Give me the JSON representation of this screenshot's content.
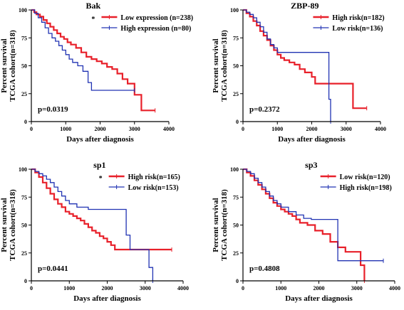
{
  "chart_data": [
    {
      "type": "line",
      "title": "Bak",
      "xlabel": "Days after diagnosis",
      "ylabel": [
        "Percent survival",
        "TCGA cohort(n=318)"
      ],
      "xlim": [
        0,
        4000
      ],
      "ylim": [
        0,
        100
      ],
      "xticks": [
        "0",
        "1000",
        "2000",
        "3000",
        "4000"
      ],
      "yticks": [
        "0",
        "25",
        "50",
        "75",
        "100"
      ],
      "legend_position": "top-right",
      "significance_marker": "*",
      "pvalue": "p=0.0319",
      "series": [
        {
          "name": "Low expression (n=238)",
          "color": "#e8202a",
          "x": [
            0,
            80,
            150,
            250,
            350,
            450,
            550,
            650,
            750,
            850,
            950,
            1050,
            1150,
            1300,
            1450,
            1600,
            1750,
            1900,
            2050,
            2200,
            2350,
            2500,
            2650,
            2800,
            3000,
            3200,
            3600
          ],
          "y": [
            100,
            98,
            96,
            94,
            91,
            88,
            85,
            82,
            79,
            76,
            74,
            71,
            69,
            66,
            62,
            58,
            56,
            54,
            52,
            49,
            47,
            43,
            38,
            34,
            24,
            10,
            10
          ]
        },
        {
          "name": "High expression (n=80)",
          "color": "#2133b3",
          "x": [
            0,
            100,
            200,
            300,
            400,
            500,
            600,
            700,
            800,
            900,
            1000,
            1100,
            1200,
            1350,
            1500,
            1650,
            1750,
            2000,
            2600,
            3000
          ],
          "y": [
            100,
            97,
            93,
            89,
            84,
            79,
            75,
            72,
            68,
            64,
            60,
            56,
            53,
            50,
            45,
            35,
            28,
            28,
            28,
            28
          ]
        }
      ]
    },
    {
      "type": "line",
      "title": "ZBP-89",
      "xlabel": "Days after diagnosis",
      "ylabel": [
        "Percent survival",
        "TCGA cohort(n=318)"
      ],
      "xlim": [
        0,
        4000
      ],
      "ylim": [
        0,
        100
      ],
      "xticks": [
        "0",
        "1000",
        "2000",
        "3000",
        "4000"
      ],
      "yticks": [
        "0",
        "25",
        "50",
        "75",
        "100"
      ],
      "legend_position": "top-right",
      "significance_marker": "",
      "pvalue": "p=0.2372",
      "series": [
        {
          "name": "High risk(n=182)",
          "color": "#e8202a",
          "x": [
            0,
            100,
            200,
            300,
            400,
            500,
            600,
            700,
            800,
            900,
            1000,
            1100,
            1200,
            1350,
            1500,
            1650,
            1800,
            2000,
            2100,
            3200,
            3400,
            3600
          ],
          "y": [
            100,
            97,
            94,
            90,
            86,
            81,
            77,
            73,
            68,
            64,
            60,
            57,
            55,
            53,
            51,
            47,
            44,
            40,
            34,
            12,
            12,
            12
          ]
        },
        {
          "name": "Low risk(n=136)",
          "color": "#2133b3",
          "x": [
            0,
            100,
            200,
            300,
            400,
            500,
            600,
            700,
            800,
            900,
            1000,
            1100,
            1200,
            1500,
            2000,
            2500,
            2550
          ],
          "y": [
            100,
            98,
            96,
            93,
            89,
            85,
            80,
            74,
            69,
            66,
            62,
            62,
            62,
            62,
            62,
            20,
            0
          ]
        }
      ]
    },
    {
      "type": "line",
      "title": "sp1",
      "xlabel": "Days after diagnosis",
      "ylabel": [
        "Percent survival",
        "TCGA cohort(n=318)"
      ],
      "xlim": [
        0,
        4000
      ],
      "ylim": [
        0,
        100
      ],
      "xticks": [
        "0",
        "1000",
        "2000",
        "3000",
        "4000"
      ],
      "yticks": [
        "0",
        "25",
        "50",
        "75",
        "100"
      ],
      "legend_position": "top-right",
      "significance_marker": "*",
      "pvalue": "p=0.0441",
      "series": [
        {
          "name": "High risk(n=165)",
          "color": "#e8202a",
          "x": [
            0,
            100,
            200,
            300,
            400,
            500,
            600,
            700,
            800,
            900,
            1000,
            1100,
            1200,
            1300,
            1400,
            1500,
            1600,
            1700,
            1800,
            1900,
            2000,
            2100,
            2200,
            3700
          ],
          "y": [
            100,
            97,
            93,
            88,
            83,
            78,
            73,
            69,
            66,
            62,
            60,
            58,
            56,
            54,
            51,
            48,
            45,
            43,
            40,
            38,
            35,
            32,
            28,
            28
          ]
        },
        {
          "name": "Low risk(n=153)",
          "color": "#2133b3",
          "x": [
            0,
            100,
            200,
            300,
            400,
            500,
            600,
            700,
            800,
            900,
            1000,
            1200,
            1500,
            2000,
            2450,
            2500,
            2600,
            2700,
            3100,
            3200
          ],
          "y": [
            100,
            98,
            96,
            94,
            91,
            88,
            84,
            80,
            76,
            72,
            69,
            66,
            64,
            64,
            64,
            41,
            28,
            28,
            12,
            0
          ]
        }
      ]
    },
    {
      "type": "line",
      "title": "sp3",
      "xlabel": "Days after diagnosis",
      "ylabel": [
        "Percent survival",
        "TCGA cohort(n=318)"
      ],
      "xlim": [
        0,
        4000
      ],
      "ylim": [
        0,
        100
      ],
      "xticks": [
        "0",
        "1000",
        "2000",
        "3000",
        "4000"
      ],
      "yticks": [
        "0",
        "25",
        "50",
        "75",
        "100"
      ],
      "legend_position": "top-right",
      "significance_marker": "",
      "pvalue": "p=0.4808",
      "series": [
        {
          "name": "Low risk(n=120)",
          "color": "#e8202a",
          "x": [
            0,
            100,
            200,
            300,
            400,
            500,
            600,
            700,
            800,
            900,
            1000,
            1100,
            1200,
            1300,
            1400,
            1500,
            1700,
            1900,
            2100,
            2300,
            2500,
            2700,
            3000,
            3100,
            3200
          ],
          "y": [
            100,
            97,
            94,
            90,
            86,
            82,
            78,
            74,
            70,
            67,
            64,
            62,
            60,
            58,
            55,
            52,
            50,
            45,
            42,
            35,
            30,
            26,
            26,
            14,
            0
          ]
        },
        {
          "name": "High risk(n=198)",
          "color": "#2133b3",
          "x": [
            0,
            100,
            200,
            300,
            400,
            500,
            600,
            700,
            800,
            900,
            1000,
            1200,
            1400,
            1600,
            1800,
            2000,
            2200,
            2450,
            2500,
            3000,
            3700
          ],
          "y": [
            100,
            98,
            96,
            92,
            88,
            84,
            80,
            76,
            72,
            69,
            66,
            62,
            59,
            56,
            55,
            55,
            55,
            55,
            18,
            18,
            18
          ]
        }
      ]
    }
  ]
}
